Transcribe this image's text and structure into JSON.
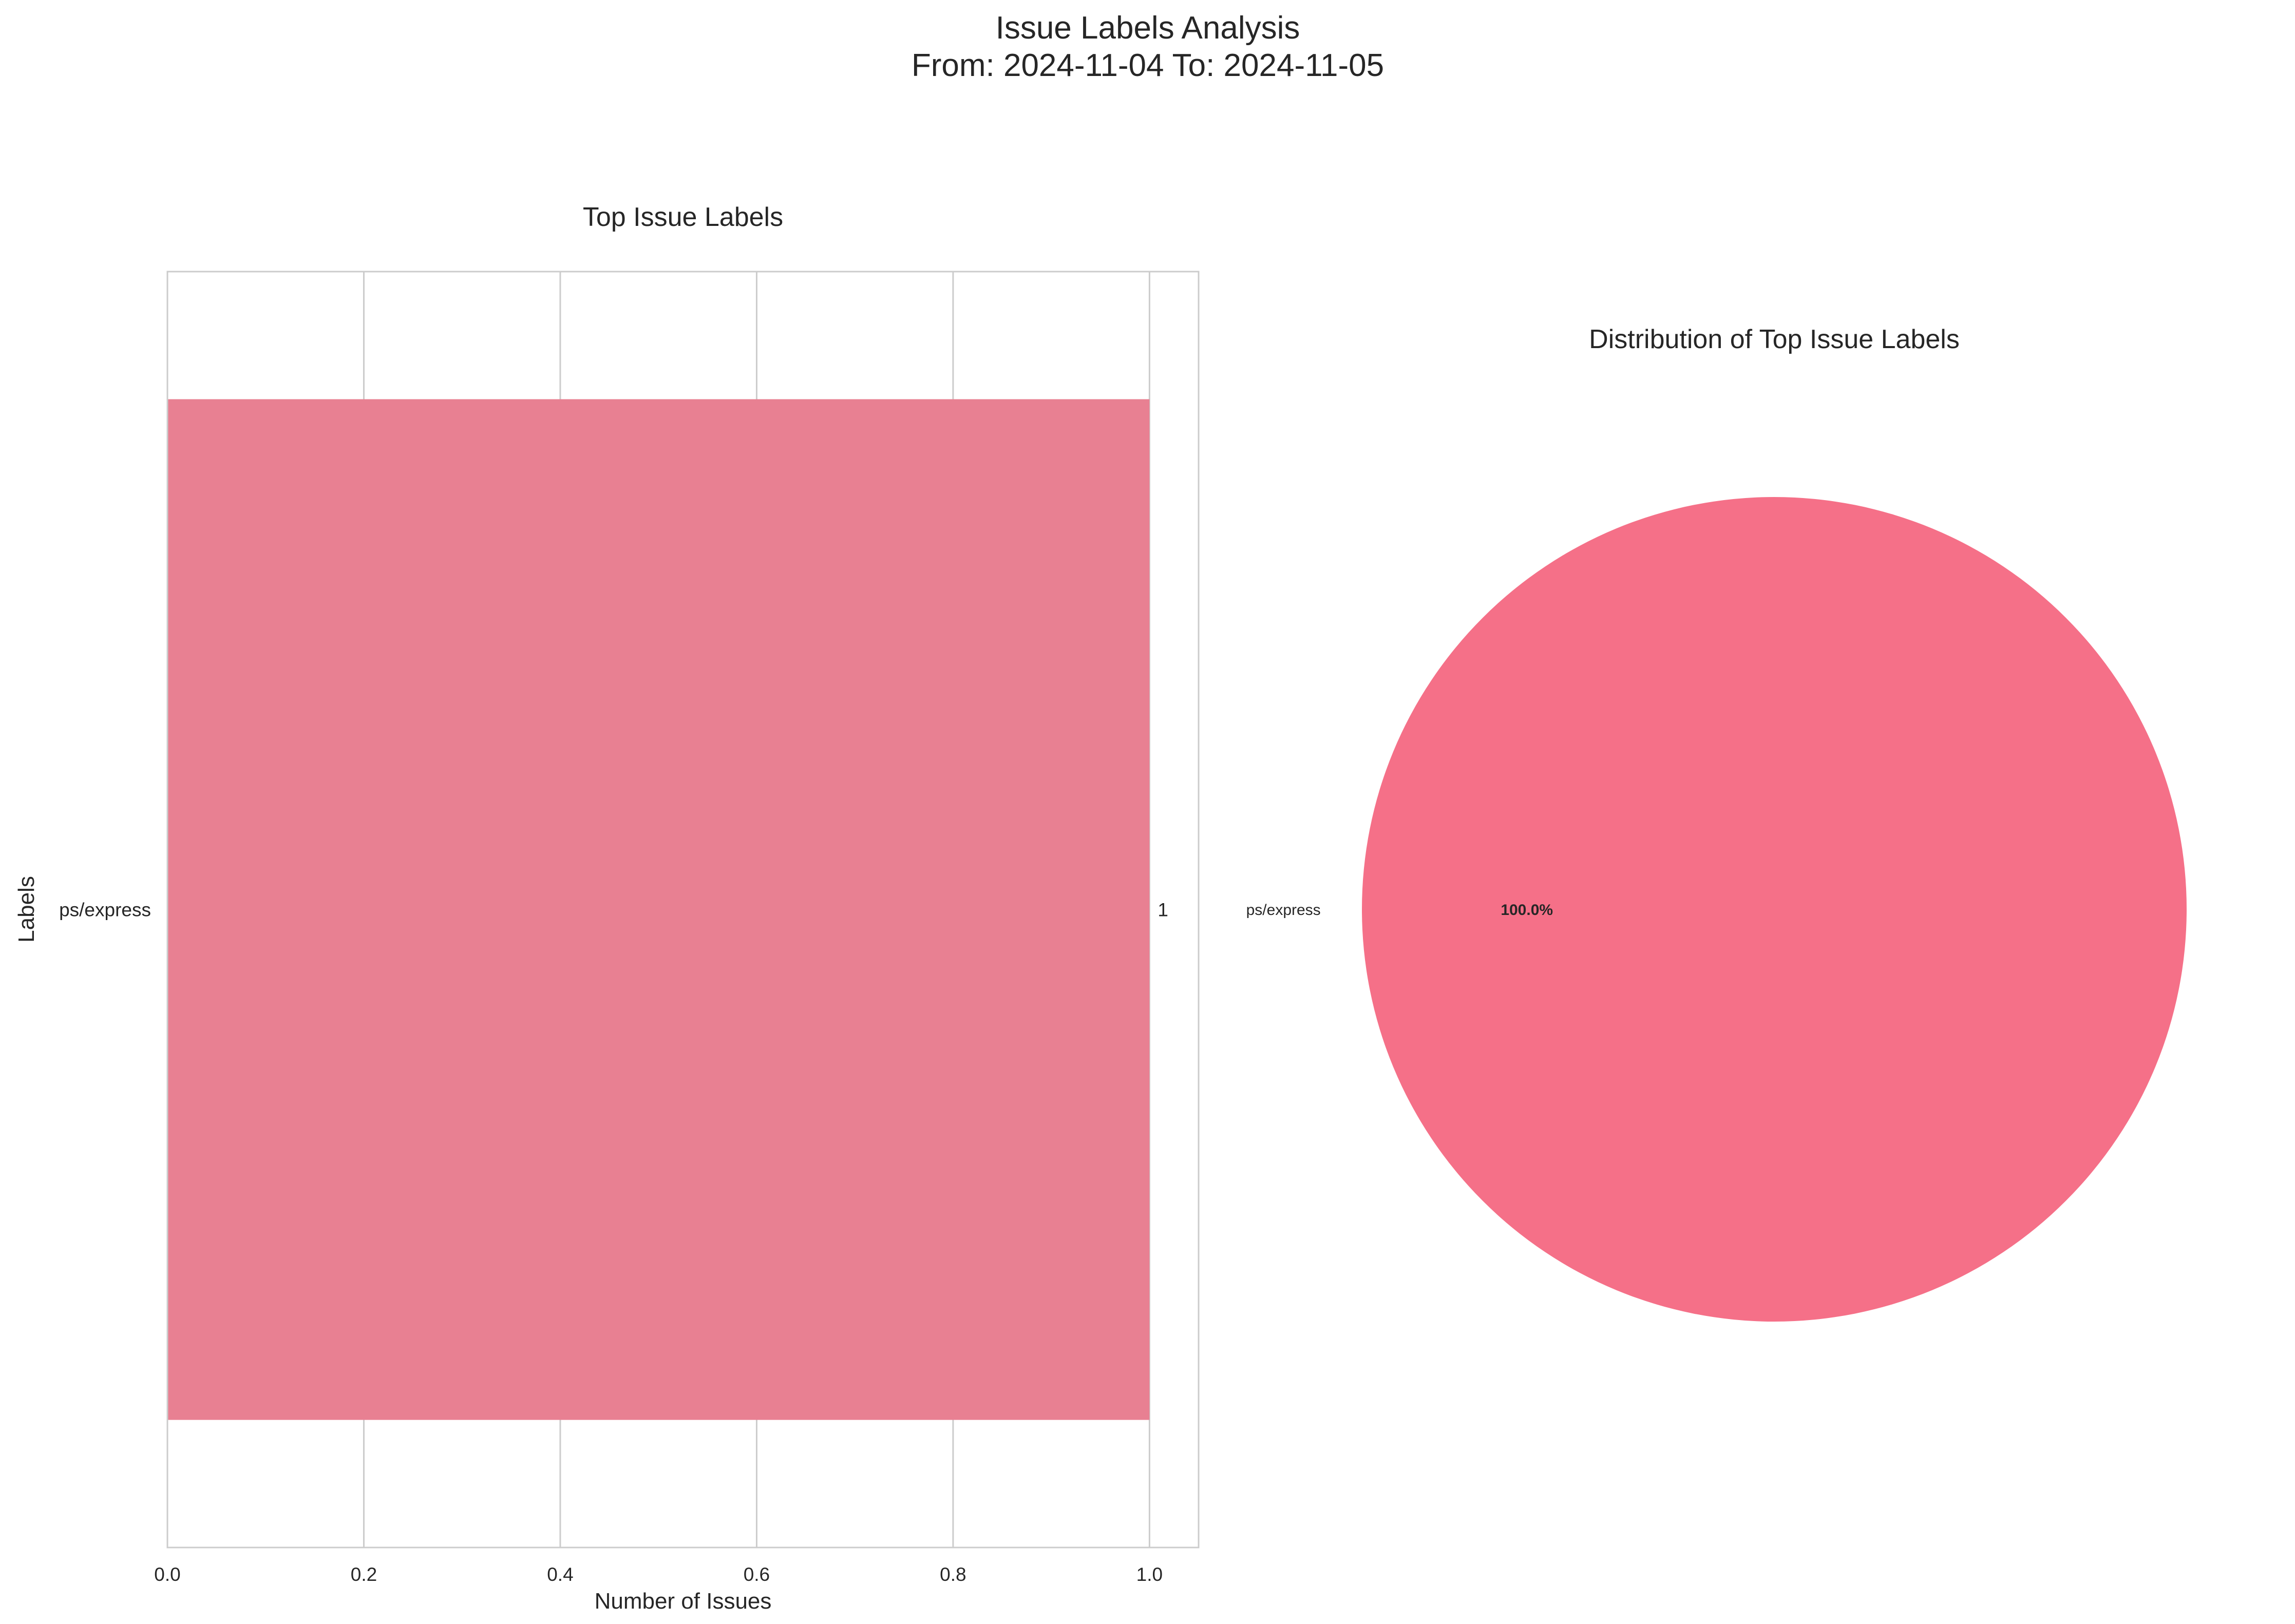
{
  "suptitle": [
    "Issue Labels Analysis",
    "From: 2024-11-04 To: 2024-11-05"
  ],
  "chart_data": [
    {
      "type": "bar",
      "orientation": "horizontal",
      "title": "Top Issue Labels",
      "xlabel": "Number of Issues",
      "ylabel": "Labels",
      "categories": [
        "ps/express"
      ],
      "values": [
        1
      ],
      "data_labels": [
        "1"
      ],
      "xlim": [
        0,
        1.05
      ],
      "x_ticks": [
        0.0,
        0.2,
        0.4,
        0.6,
        0.8,
        1.0
      ],
      "x_tick_labels": [
        "0.0",
        "0.2",
        "0.4",
        "0.6",
        "0.8",
        "1.0"
      ],
      "grid": true,
      "bar_color": "#e88092"
    },
    {
      "type": "pie",
      "title": "Distribution of Top Issue Labels",
      "labels": [
        "ps/express"
      ],
      "values": [
        1
      ],
      "pct_labels": [
        "100.0%"
      ],
      "colors": [
        "#f57088"
      ]
    }
  ]
}
